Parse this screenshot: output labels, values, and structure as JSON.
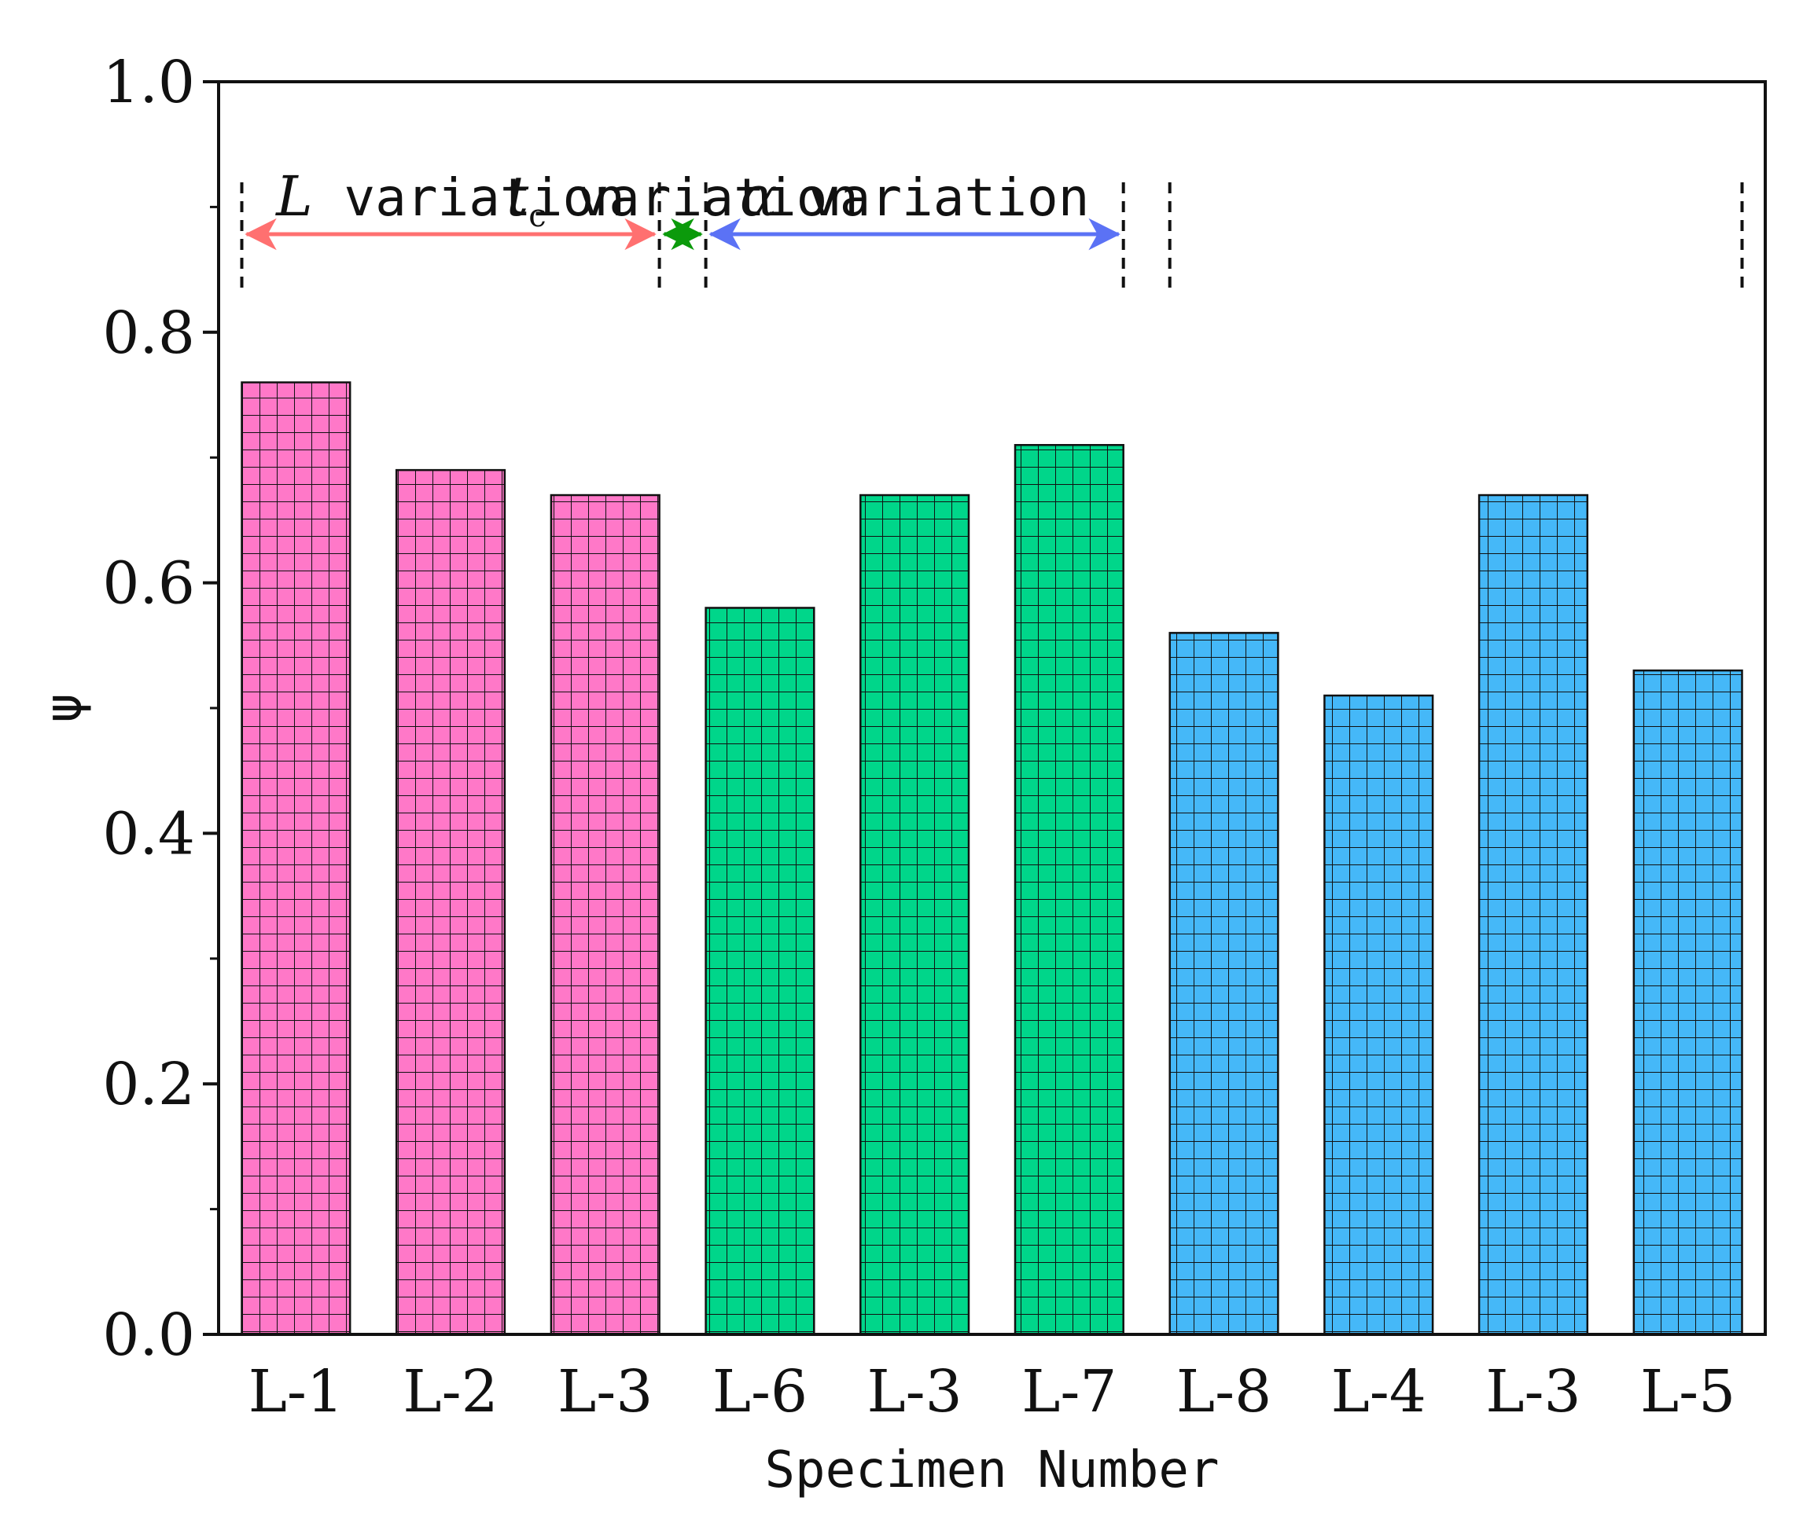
{
  "chart_data": {
    "type": "bar",
    "xlabel": "Specimen Number",
    "ylabel": "ψ",
    "ylim": [
      0.0,
      1.0
    ],
    "yticks": [
      "0.0",
      "0.2",
      "0.4",
      "0.6",
      "0.8",
      "1.0"
    ],
    "categories": [
      "L-1",
      "L-2",
      "L-3",
      "L-6",
      "L-3",
      "L-7",
      "L-8",
      "L-4",
      "L-3",
      "L-5"
    ],
    "values": [
      0.76,
      0.69,
      0.67,
      0.58,
      0.67,
      0.71,
      0.56,
      0.51,
      0.67,
      0.53
    ],
    "groups": [
      {
        "symbol": "L",
        "subscript": "",
        "label": "variation",
        "color": "#ff7070",
        "bar_color": "#ff78c8",
        "from": 0,
        "to": 2
      },
      {
        "symbol": "t",
        "subscript": "c",
        "label": "variation",
        "color": "#0b9a0b",
        "bar_color": "#00d68a",
        "from": 3,
        "to": 5
      },
      {
        "symbol": "α",
        "subscript": "",
        "label": "variation",
        "color": "#5b72f5",
        "bar_color": "#45b8f8",
        "from": 6,
        "to": 9
      }
    ],
    "pattern": "grid"
  }
}
